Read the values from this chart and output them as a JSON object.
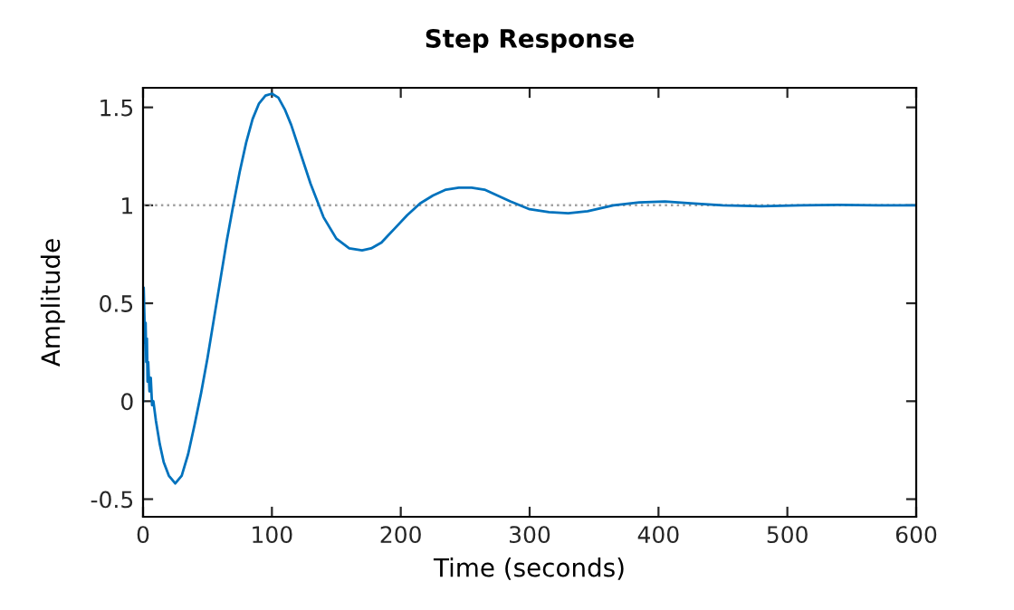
{
  "chart_data": {
    "type": "line",
    "title": "Step Response",
    "xlabel": "Time (seconds)",
    "ylabel": "Amplitude",
    "xlim": [
      0,
      600
    ],
    "ylim": [
      -0.59,
      1.6
    ],
    "xticks": [
      0,
      100,
      200,
      300,
      400,
      500,
      600
    ],
    "yticks": [
      -0.5,
      0,
      0.5,
      1,
      1.5
    ],
    "grid": false,
    "legend": false,
    "marker": "none",
    "line_style": "solid",
    "ref_lines": [
      {
        "axis": "y",
        "value": 1,
        "color": "#a0a0a0",
        "line_style": "dotted"
      }
    ],
    "series": [
      {
        "color": "#0072bd",
        "x": [
          0,
          0.5,
          1,
          1.5,
          2,
          2.5,
          3,
          3.5,
          4,
          5,
          6,
          7,
          8,
          10,
          13,
          16,
          20,
          25,
          30,
          35,
          40,
          45,
          50,
          55,
          60,
          65,
          70,
          75,
          80,
          85,
          90,
          95,
          100,
          105,
          110,
          115,
          120,
          130,
          140,
          150,
          160,
          170,
          177,
          185,
          195,
          205,
          215,
          225,
          235,
          245,
          255,
          265,
          275,
          285,
          300,
          315,
          330,
          345,
          365,
          385,
          405,
          425,
          450,
          480,
          510,
          540,
          570,
          600
        ],
        "values": [
          0,
          0.58,
          0.45,
          0.3,
          0.4,
          0.2,
          0.32,
          0.1,
          0.2,
          0.05,
          0.12,
          -0.02,
          0.0,
          -0.1,
          -0.22,
          -0.31,
          -0.38,
          -0.42,
          -0.38,
          -0.27,
          -0.12,
          0.04,
          0.22,
          0.42,
          0.62,
          0.82,
          1.0,
          1.17,
          1.32,
          1.44,
          1.52,
          1.56,
          1.57,
          1.55,
          1.49,
          1.41,
          1.31,
          1.11,
          0.94,
          0.83,
          0.78,
          0.77,
          0.78,
          0.81,
          0.88,
          0.95,
          1.01,
          1.05,
          1.08,
          1.09,
          1.09,
          1.08,
          1.05,
          1.02,
          0.98,
          0.965,
          0.96,
          0.97,
          1.0,
          1.015,
          1.02,
          1.01,
          1.0,
          0.995,
          1.0,
          1.002,
          1.0,
          1.0
        ]
      }
    ]
  }
}
